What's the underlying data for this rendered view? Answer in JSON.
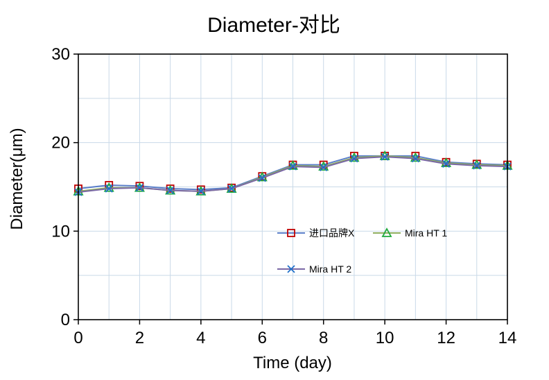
{
  "chart_data": {
    "type": "line",
    "title": "Diameter-对比",
    "xlabel": "Time (day)",
    "ylabel": "Diameter(μm)",
    "xlim": [
      0,
      14
    ],
    "ylim": [
      0,
      30
    ],
    "xticks": [
      0,
      2,
      4,
      6,
      8,
      10,
      12,
      14
    ],
    "yticks": [
      0,
      10,
      20,
      30
    ],
    "grid": true,
    "legend_position": "center-right",
    "x": [
      0,
      1,
      2,
      3,
      4,
      5,
      6,
      7,
      8,
      9,
      10,
      11,
      12,
      13,
      14
    ],
    "series": [
      {
        "name": "进口品牌X",
        "marker": "square",
        "line_color": "#5b7fc9",
        "marker_color": "#c00000",
        "values": [
          14.8,
          15.2,
          15.1,
          14.8,
          14.7,
          14.9,
          16.2,
          17.5,
          17.5,
          18.5,
          18.5,
          18.5,
          17.8,
          17.6,
          17.5
        ]
      },
      {
        "name": "Mira HT 1",
        "marker": "triangle",
        "line_color": "#8fae5e",
        "marker_color": "#1faa3c",
        "values": [
          14.5,
          14.9,
          14.9,
          14.6,
          14.5,
          14.8,
          16.1,
          17.4,
          17.3,
          18.3,
          18.5,
          18.3,
          17.7,
          17.5,
          17.4
        ]
      },
      {
        "name": "Mira HT 2",
        "marker": "x",
        "line_color": "#7a68a6",
        "marker_color": "#1f6fc9",
        "values": [
          14.4,
          14.8,
          14.9,
          14.6,
          14.5,
          14.8,
          16.0,
          17.3,
          17.2,
          18.2,
          18.4,
          18.2,
          17.6,
          17.4,
          17.3
        ]
      }
    ]
  }
}
